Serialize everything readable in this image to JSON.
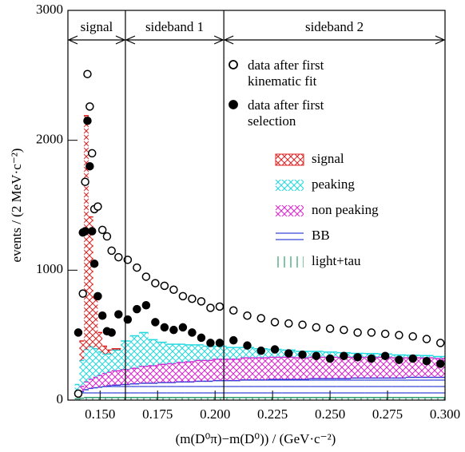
{
  "chart_data": {
    "type": "histogram",
    "x_label": "(m(D⁰π)−m(D⁰)) / (GeV·c⁻²)",
    "y_label": "events / (2 MeV·c⁻²)",
    "xlim": [
      0.136,
      0.3
    ],
    "xticks": [
      {
        "value": 0.15,
        "label": "0.150"
      },
      0.175,
      {
        "value": 0.2,
        "label": "0.200"
      },
      0.225,
      {
        "value": 0.25,
        "label": "0.250"
      },
      0.275,
      {
        "value": 0.3,
        "label": "0.300"
      }
    ],
    "ylim": [
      0,
      3000
    ],
    "yticks": [
      0,
      1000,
      2000,
      3000
    ],
    "regions": [
      {
        "label": "signal",
        "range": [
          0.136,
          0.161
        ]
      },
      {
        "label": "sideband 1",
        "range": [
          0.161,
          0.2038
        ]
      },
      {
        "label": "sideband 2",
        "range": [
          0.2038,
          0.3
        ]
      }
    ],
    "bins": [
      0.139,
      0.141,
      0.143,
      0.145,
      0.147,
      0.149,
      0.151,
      0.153,
      0.155,
      0.159,
      0.163,
      0.167,
      0.171,
      0.175,
      0.179,
      0.183,
      0.187,
      0.191,
      0.195,
      0.199,
      0.205,
      0.211,
      0.217,
      0.223,
      0.229,
      0.235,
      0.241,
      0.247,
      0.253,
      0.259,
      0.265,
      0.271,
      0.277,
      0.283,
      0.289,
      0.295,
      0.3
    ],
    "series": [
      {
        "name": "light+tau",
        "color": "#2e9e6e",
        "hatch": "vertical",
        "values": [
          10,
          15,
          20,
          20,
          20,
          20,
          20,
          20,
          20,
          20,
          20,
          20,
          20,
          20,
          20,
          20,
          20,
          20,
          20,
          20,
          20,
          20,
          20,
          20,
          20,
          20,
          20,
          20,
          20,
          20,
          20,
          20,
          20,
          20,
          20,
          20
        ]
      },
      {
        "name": "BB",
        "color": "#2a3fd6",
        "hatch": "horizontal",
        "values": [
          30,
          50,
          60,
          70,
          75,
          80,
          85,
          90,
          95,
          100,
          105,
          110,
          110,
          115,
          115,
          120,
          120,
          125,
          125,
          130,
          130,
          135,
          135,
          140,
          140,
          140,
          145,
          145,
          145,
          150,
          150,
          150,
          150,
          155,
          155,
          155
        ]
      },
      {
        "name": "non peaking",
        "color": "#e020d0",
        "hatch": "cross",
        "values": [
          20,
          40,
          60,
          70,
          80,
          90,
          100,
          105,
          110,
          115,
          120,
          130,
          135,
          140,
          145,
          150,
          155,
          160,
          160,
          165,
          165,
          170,
          170,
          170,
          170,
          165,
          165,
          165,
          165,
          160,
          160,
          160,
          155,
          150,
          150,
          145
        ]
      },
      {
        "name": "peaking",
        "color": "#20d8e0",
        "hatch": "cross",
        "values": [
          60,
          200,
          250,
          250,
          220,
          180,
          150,
          140,
          160,
          220,
          250,
          260,
          200,
          170,
          150,
          140,
          130,
          120,
          110,
          100,
          90,
          80,
          70,
          60,
          55,
          50,
          45,
          40,
          35,
          30,
          28,
          25,
          22,
          20,
          18,
          15
        ]
      },
      {
        "name": "signal",
        "color": "#e02020",
        "hatch": "cross",
        "values": [
          0,
          150,
          1800,
          1000,
          400,
          150,
          60,
          30,
          10,
          0,
          0,
          0,
          0,
          0,
          0,
          0,
          0,
          0,
          0,
          0,
          0,
          0,
          0,
          0,
          0,
          0,
          0,
          0,
          0,
          0,
          0,
          0,
          0,
          0,
          0,
          0
        ]
      }
    ],
    "points": [
      {
        "name": "data after first kinematic fit",
        "marker": "open",
        "color": "#000000",
        "x": [
          0.1405,
          0.1425,
          0.1435,
          0.1445,
          0.1455,
          0.1465,
          0.1475,
          0.149,
          0.151,
          0.153,
          0.155,
          0.158,
          0.162,
          0.166,
          0.17,
          0.174,
          0.178,
          0.182,
          0.186,
          0.19,
          0.194,
          0.198,
          0.202,
          0.208,
          0.214,
          0.22,
          0.226,
          0.232,
          0.238,
          0.244,
          0.25,
          0.256,
          0.262,
          0.268,
          0.274,
          0.28,
          0.286,
          0.292,
          0.298
        ],
        "values": [
          50,
          820,
          1680,
          2510,
          2260,
          1900,
          1470,
          1490,
          1310,
          1260,
          1150,
          1100,
          1080,
          1020,
          950,
          900,
          880,
          850,
          800,
          780,
          760,
          710,
          720,
          690,
          650,
          630,
          600,
          590,
          580,
          560,
          550,
          540,
          520,
          520,
          510,
          500,
          490,
          470,
          440
        ]
      },
      {
        "name": "data after first selection",
        "marker": "filled",
        "color": "#000000",
        "x": [
          0.1405,
          0.1425,
          0.1435,
          0.1445,
          0.1455,
          0.1465,
          0.1475,
          0.149,
          0.151,
          0.153,
          0.155,
          0.158,
          0.162,
          0.166,
          0.17,
          0.174,
          0.178,
          0.182,
          0.186,
          0.19,
          0.194,
          0.198,
          0.202,
          0.208,
          0.214,
          0.22,
          0.226,
          0.232,
          0.238,
          0.244,
          0.25,
          0.256,
          0.262,
          0.268,
          0.274,
          0.28,
          0.286,
          0.292,
          0.298
        ],
        "values": [
          520,
          1290,
          1300,
          2150,
          1800,
          1300,
          1050,
          800,
          650,
          530,
          520,
          660,
          620,
          700,
          730,
          600,
          560,
          540,
          560,
          520,
          480,
          440,
          440,
          460,
          420,
          380,
          390,
          360,
          350,
          340,
          320,
          340,
          330,
          320,
          340,
          310,
          320,
          300,
          280
        ]
      }
    ]
  }
}
